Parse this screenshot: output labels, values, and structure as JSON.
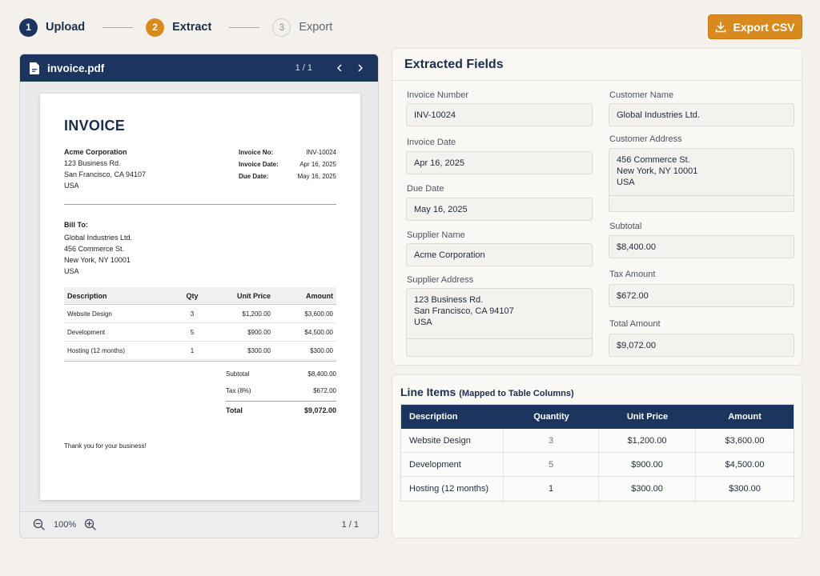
{
  "stepper": {
    "steps": [
      {
        "num": "1",
        "label": "Upload"
      },
      {
        "num": "2",
        "label": "Extract"
      },
      {
        "num": "3",
        "label": "Export"
      }
    ]
  },
  "toolbar": {
    "export_label": "Export CSV",
    "export_icon": "download-icon"
  },
  "viewer": {
    "file_name": "invoice.pdf",
    "page_indicator": "1 / 1",
    "zoom": "100%",
    "footer_page": "1 / 1"
  },
  "document": {
    "title": "INVOICE",
    "supplier": {
      "name": "Acme Corporation",
      "street": "123 Business Rd.",
      "city": "San Francisco, CA 94107",
      "country": "USA"
    },
    "meta": [
      {
        "label": "Invoice No:",
        "value": "INV-10024"
      },
      {
        "label": "Invoice Date:",
        "value": "Apr 16, 2025"
      },
      {
        "label": "Due Date:",
        "value": "May 16, 2025"
      }
    ],
    "bill_to": {
      "label": "Bill To:",
      "name": "Global Industries Ltd.",
      "street": "456 Commerce St.",
      "city": "New York, NY 10001",
      "country": "USA"
    },
    "table": {
      "headers": [
        "Description",
        "Qty",
        "Unit Price",
        "Amount"
      ],
      "rows": [
        [
          "Website Design",
          "3",
          "$1,200.00",
          "$3,600.00"
        ],
        [
          "Development",
          "5",
          "$900.00",
          "$4,500.00"
        ],
        [
          "Hosting (12 months)",
          "1",
          "$300.00",
          "$300.00"
        ]
      ]
    },
    "totals": [
      {
        "label": "Subtotal",
        "value": "$8,400.00"
      },
      {
        "label": "Tax (8%)",
        "value": "$672.00"
      },
      {
        "label": "Total",
        "value": "$9,072.00"
      }
    ],
    "thanks": "Thank you for your business!"
  },
  "fields": {
    "title": "Extracted Fields",
    "invoice_number": {
      "label": "Invoice Number",
      "value": "INV-10024"
    },
    "invoice_date": {
      "label": "Invoice Date",
      "value": "Apr 16, 2025"
    },
    "due_date": {
      "label": "Due Date",
      "value": "May 16, 2025"
    },
    "supplier_name": {
      "label": "Supplier Name",
      "value": "Acme Corporation"
    },
    "supplier_address": {
      "label": "Supplier Address",
      "lines": [
        "123 Business Rd.",
        "San Francisco, CA 94107",
        "USA"
      ]
    },
    "customer_name": {
      "label": "Customer Name",
      "value": "Global Industries Ltd."
    },
    "customer_address": {
      "label": "Customer Address",
      "lines": [
        "456 Commerce St.",
        "New York, NY 10001",
        "USA"
      ]
    },
    "subtotal": {
      "label": "Subtotal",
      "value": "$8,400.00"
    },
    "tax_amount": {
      "label": "Tax Amount",
      "value": "$672.00"
    },
    "total_amount": {
      "label": "Total Amount",
      "value": "$9,072.00"
    }
  },
  "line_items": {
    "title": "Line Items",
    "subtitle": "(Mapped to Table Columns)",
    "headers": [
      "Description",
      "Quantity",
      "Unit Price",
      "Amount"
    ],
    "rows": [
      [
        "Website Design",
        "3",
        "$1,200.00",
        "$3,600.00"
      ],
      [
        "Development",
        "5",
        "$900.00",
        "$4,500.00"
      ],
      [
        "Hosting (12 months)",
        "1",
        "$300.00",
        "$300.00"
      ]
    ]
  },
  "colors": {
    "primary_navy": "#1c355e",
    "accent_orange": "#d98a1f",
    "background": "#f4f1ec"
  }
}
